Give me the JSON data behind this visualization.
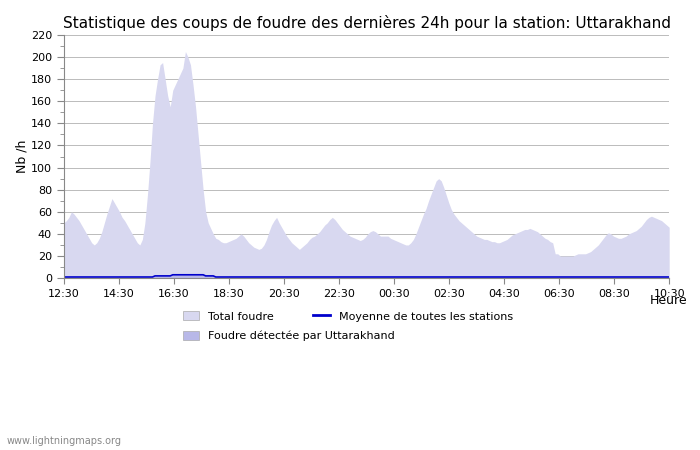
{
  "title": "Statistique des coups de foudre des dernières 24h pour la station: Uttarakhand",
  "ylabel": "Nb /h",
  "xlabel": "Heure",
  "watermark": "www.lightningmaps.org",
  "ylim": [
    0,
    220
  ],
  "yticks": [
    0,
    20,
    40,
    60,
    80,
    100,
    120,
    140,
    160,
    180,
    200,
    220
  ],
  "xtick_labels": [
    "12:30",
    "14:30",
    "16:30",
    "18:30",
    "20:30",
    "22:30",
    "00:30",
    "02:30",
    "04:30",
    "06:30",
    "08:30",
    "10:30"
  ],
  "fill_color_total": "#d8d8f0",
  "fill_color_detected": "#b8b8e8",
  "line_color_mean": "#0000cc",
  "bg_color": "#ffffff",
  "grid_color": "#bbbbbb",
  "title_fontsize": 11,
  "legend_entries": [
    "Total foudre",
    "Moyenne de toutes les stations",
    "Foudre détectée par Uttarakhand"
  ],
  "total_foudre": [
    50,
    52,
    55,
    60,
    58,
    55,
    52,
    48,
    44,
    40,
    36,
    32,
    30,
    32,
    36,
    42,
    50,
    58,
    65,
    72,
    68,
    64,
    60,
    55,
    52,
    48,
    44,
    40,
    36,
    32,
    30,
    35,
    50,
    75,
    105,
    140,
    165,
    180,
    193,
    195,
    180,
    165,
    155,
    170,
    175,
    180,
    185,
    190,
    205,
    200,
    193,
    175,
    155,
    130,
    105,
    80,
    60,
    50,
    45,
    40,
    36,
    35,
    33,
    32,
    32,
    33,
    34,
    35,
    36,
    38,
    40,
    38,
    35,
    32,
    30,
    28,
    27,
    26,
    27,
    30,
    35,
    42,
    48,
    52,
    55,
    50,
    46,
    42,
    38,
    35,
    32,
    30,
    28,
    26,
    28,
    30,
    32,
    35,
    37,
    38,
    40,
    42,
    45,
    48,
    50,
    53,
    55,
    53,
    50,
    47,
    44,
    42,
    40,
    38,
    37,
    36,
    35,
    34,
    35,
    37,
    40,
    42,
    43,
    42,
    40,
    38,
    38,
    38,
    38,
    36,
    35,
    34,
    33,
    32,
    31,
    30,
    30,
    32,
    35,
    40,
    46,
    52,
    58,
    63,
    70,
    76,
    82,
    88,
    90,
    88,
    82,
    75,
    68,
    62,
    58,
    55,
    52,
    50,
    48,
    46,
    44,
    42,
    40,
    38,
    37,
    36,
    35,
    35,
    34,
    33,
    33,
    32,
    32,
    33,
    34,
    35,
    37,
    39,
    40,
    41,
    42,
    43,
    44,
    44,
    45,
    44,
    43,
    42,
    40,
    38,
    36,
    35,
    33,
    32,
    22,
    22,
    20,
    20,
    20,
    20,
    20,
    20,
    21,
    22,
    22,
    22,
    22,
    23,
    24,
    26,
    28,
    30,
    33,
    36,
    39,
    41,
    40,
    38,
    37,
    36,
    36,
    37,
    38,
    40,
    41,
    42,
    43,
    45,
    47,
    50,
    53,
    55,
    56,
    55,
    54,
    53,
    52,
    50,
    48,
    46
  ],
  "detected_uttarakhand": [
    1,
    1,
    1,
    1,
    1,
    1,
    1,
    1,
    1,
    1,
    1,
    1,
    1,
    1,
    1,
    1,
    1,
    1,
    1,
    1,
    1,
    1,
    1,
    1,
    1,
    1,
    1,
    1,
    1,
    1,
    1,
    1,
    1,
    1,
    1,
    1,
    2,
    2,
    2,
    2,
    2,
    2,
    2,
    3,
    3,
    3,
    3,
    3,
    3,
    3,
    3,
    3,
    3,
    3,
    3,
    3,
    2,
    2,
    2,
    2,
    1,
    1,
    1,
    1,
    1,
    1,
    1,
    1,
    1,
    1,
    1,
    1,
    1,
    1,
    1,
    1,
    1,
    1,
    1,
    1,
    1,
    1,
    1,
    1,
    1,
    1,
    1,
    1,
    1,
    1,
    1,
    1,
    1,
    1,
    1,
    1,
    1,
    1,
    1,
    1,
    1,
    1,
    1,
    1,
    1,
    1,
    1,
    1,
    1,
    1,
    1,
    1,
    1,
    1,
    1,
    1,
    1,
    1,
    1,
    1,
    1,
    1,
    1,
    1,
    1,
    1,
    1,
    1,
    1,
    1,
    1,
    1,
    1,
    1,
    1,
    1,
    1,
    1,
    1,
    1,
    1,
    1,
    1,
    1,
    1,
    1,
    1,
    1,
    1,
    1,
    1,
    1,
    1,
    1,
    1,
    1,
    1,
    1,
    1,
    1,
    1,
    1,
    1,
    1,
    1,
    1,
    1,
    1,
    1,
    1,
    1,
    1,
    1,
    1,
    1,
    1,
    1,
    1,
    1,
    1,
    1,
    1,
    1,
    1,
    1,
    1,
    1,
    1,
    1,
    1,
    1,
    1,
    1,
    1,
    1,
    1,
    1,
    1,
    1,
    1,
    1,
    1,
    1,
    1,
    1,
    1,
    1,
    1,
    1,
    1,
    1,
    1,
    1,
    1,
    1,
    1,
    1,
    1,
    1,
    1,
    1,
    1,
    1,
    1,
    1,
    1,
    1,
    1,
    1,
    1,
    1,
    1,
    1,
    1,
    1,
    1,
    1,
    1,
    1,
    1
  ],
  "mean_stations": [
    1,
    1,
    1,
    1,
    1,
    1,
    1,
    1,
    1,
    1,
    1,
    1,
    1,
    1,
    1,
    1,
    1,
    1,
    1,
    1,
    1,
    1,
    1,
    1,
    1,
    1,
    1,
    1,
    1,
    1,
    1,
    1,
    1,
    1,
    1,
    1,
    2,
    2,
    2,
    2,
    2,
    2,
    2,
    3,
    3,
    3,
    3,
    3,
    3,
    3,
    3,
    3,
    3,
    3,
    3,
    3,
    2,
    2,
    2,
    2,
    1,
    1,
    1,
    1,
    1,
    1,
    1,
    1,
    1,
    1,
    1,
    1,
    1,
    1,
    1,
    1,
    1,
    1,
    1,
    1,
    1,
    1,
    1,
    1,
    1,
    1,
    1,
    1,
    1,
    1,
    1,
    1,
    1,
    1,
    1,
    1,
    1,
    1,
    1,
    1,
    1,
    1,
    1,
    1,
    1,
    1,
    1,
    1,
    1,
    1,
    1,
    1,
    1,
    1,
    1,
    1,
    1,
    1,
    1,
    1,
    1,
    1,
    1,
    1,
    1,
    1,
    1,
    1,
    1,
    1,
    1,
    1,
    1,
    1,
    1,
    1,
    1,
    1,
    1,
    1,
    1,
    1,
    1,
    1,
    1,
    1,
    1,
    1,
    1,
    1,
    1,
    1,
    1,
    1,
    1,
    1,
    1,
    1,
    1,
    1,
    1,
    1,
    1,
    1,
    1,
    1,
    1,
    1,
    1,
    1,
    1,
    1,
    1,
    1,
    1,
    1,
    1,
    1,
    1,
    1,
    1,
    1,
    1,
    1,
    1,
    1,
    1,
    1,
    1,
    1,
    1,
    1,
    1,
    1,
    1,
    1,
    1,
    1,
    1,
    1,
    1,
    1,
    1,
    1,
    1,
    1,
    1,
    1,
    1,
    1,
    1,
    1,
    1,
    1,
    1,
    1,
    1,
    1,
    1,
    1,
    1,
    1,
    1,
    1,
    1,
    1,
    1,
    1,
    1,
    1,
    1,
    1,
    1,
    1,
    1,
    1,
    1,
    1,
    1,
    1
  ]
}
